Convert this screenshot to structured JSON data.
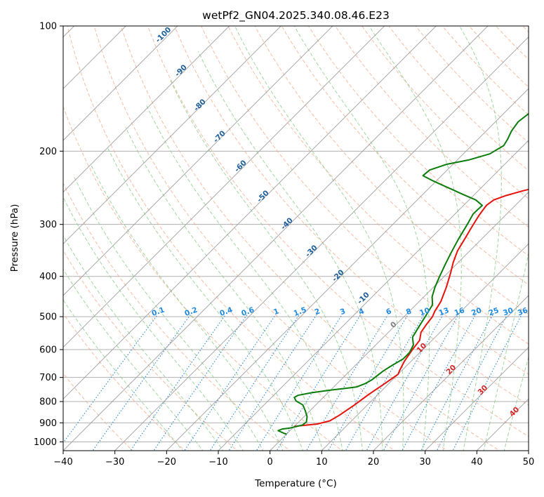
{
  "chart_data": {
    "type": "line",
    "title": "wetPf2_GN04.2025.340.08.46.E23",
    "xlabel": "Temperature (°C)",
    "ylabel": "Pressure (hPa)",
    "xlim": [
      -40,
      50
    ],
    "ylim": [
      1050,
      100
    ],
    "x_ticks": [
      -40,
      -30,
      -20,
      -10,
      0,
      10,
      20,
      30,
      40,
      50
    ],
    "x_tick_labels": [
      "−40",
      "−30",
      "−20",
      "−10",
      "0",
      "10",
      "20",
      "30",
      "40",
      "50"
    ],
    "y_ticks": [
      1000,
      900,
      800,
      700,
      600,
      500,
      400,
      300,
      200,
      100
    ],
    "y_tick_labels": [
      "1000",
      "900",
      "800",
      "700",
      "600",
      "500",
      "400",
      "300",
      "200",
      "100"
    ],
    "grid": true,
    "skew_deg": 45,
    "colors": {
      "temperature": "#e8120c",
      "dewpoint": "#0a7d0a",
      "isotherm": "#9a9a9a",
      "dry_adiabat": "#f4a583",
      "moist_adiabat": "#8fcf8f",
      "mixing_ratio": "#2a8ad8",
      "label_dry": "#1f5f9a",
      "label_moist": "#d62728",
      "label_mixing": "#1f8ae0",
      "label_zero": "#7f7f7f"
    },
    "series": [
      {
        "name": "Temperature",
        "color": "#e8120c",
        "points": [
          [
            0.0,
            918
          ],
          [
            4,
            906
          ],
          [
            5.8,
            890
          ],
          [
            6.6,
            862
          ],
          [
            7.5,
            815
          ],
          [
            8.2,
            770
          ],
          [
            9.2,
            725
          ],
          [
            10.0,
            688
          ],
          [
            9.6,
            675
          ],
          [
            8.7,
            640
          ],
          [
            8.0,
            600
          ],
          [
            7.6,
            570
          ],
          [
            6.3,
            545
          ],
          [
            5.8,
            520
          ],
          [
            5.5,
            500
          ],
          [
            4.9,
            485
          ],
          [
            4.2,
            460
          ],
          [
            2.5,
            425
          ],
          [
            0.6,
            393
          ],
          [
            -1.0,
            370
          ],
          [
            -2.4,
            347
          ],
          [
            -3.3,
            325
          ],
          [
            -4.2,
            305
          ],
          [
            -5.1,
            285
          ],
          [
            -5.6,
            270
          ],
          [
            -5.2,
            262
          ],
          [
            -3.8,
            256
          ],
          [
            -1.3,
            249
          ],
          [
            1.3,
            243
          ],
          [
            3.5,
            236
          ],
          [
            5.3,
            229
          ],
          [
            6.5,
            221
          ],
          [
            7.8,
            211
          ],
          [
            9.1,
            203
          ],
          [
            10.5,
            196
          ],
          [
            12.5,
            187
          ],
          [
            14.7,
            178
          ],
          [
            16.2,
            170
          ],
          [
            17.5,
            162
          ],
          [
            19.0,
            156
          ],
          [
            21.0,
            147
          ],
          [
            23.6,
            139
          ],
          [
            26.0,
            131
          ],
          [
            28.5,
            123
          ],
          [
            30.3,
            116
          ],
          [
            31.5,
            108
          ],
          [
            32.5,
            104
          ],
          [
            34.0,
            100
          ]
        ]
      },
      {
        "name": "Dewpoint",
        "color": "#0a7d0a",
        "points": [
          [
            0.0,
            958
          ],
          [
            -0.5,
            955
          ],
          [
            -2.3,
            940
          ],
          [
            -1.8,
            931
          ],
          [
            -0.5,
            926
          ],
          [
            1.3,
            911
          ],
          [
            1.5,
            896
          ],
          [
            0.6,
            870
          ],
          [
            -1.0,
            840
          ],
          [
            -2.5,
            815
          ],
          [
            -4.6,
            797
          ],
          [
            -5.6,
            782
          ],
          [
            -5.3,
            773
          ],
          [
            -3.2,
            762
          ],
          [
            -0.4,
            752
          ],
          [
            2.0,
            745
          ],
          [
            4.4,
            738
          ],
          [
            5.4,
            725
          ],
          [
            6.0,
            710
          ],
          [
            6.2,
            695
          ],
          [
            6.5,
            675
          ],
          [
            7.1,
            655
          ],
          [
            8.0,
            632
          ],
          [
            8.0,
            610
          ],
          [
            7.3,
            585
          ],
          [
            5.6,
            560
          ],
          [
            4.6,
            520
          ],
          [
            4.1,
            500
          ],
          [
            3.2,
            468
          ],
          [
            1.6,
            448
          ],
          [
            0.3,
            425
          ],
          [
            -0.9,
            400
          ],
          [
            -2.1,
            375
          ],
          [
            -3.3,
            350
          ],
          [
            -4.5,
            325
          ],
          [
            -5.6,
            300
          ],
          [
            -6.5,
            283
          ],
          [
            -6.4,
            270
          ],
          [
            -8.7,
            262
          ],
          [
            -12.3,
            254
          ],
          [
            -15.4,
            247
          ],
          [
            -18.2,
            241
          ],
          [
            -21.0,
            235
          ],
          [
            -23.6,
            229
          ],
          [
            -23.4,
            222
          ],
          [
            -21.2,
            215
          ],
          [
            -17.8,
            210
          ],
          [
            -14.9,
            203
          ],
          [
            -13.8,
            194
          ],
          [
            -14.3,
            187
          ],
          [
            -15.1,
            179
          ],
          [
            -15.6,
            170
          ],
          [
            -15.0,
            160
          ],
          [
            -14.4,
            150
          ],
          [
            -14.0,
            143
          ],
          [
            -13.5,
            136
          ],
          [
            -11.8,
            128
          ],
          [
            -9.8,
            122
          ],
          [
            -8.3,
            116
          ],
          [
            -6.2,
            110
          ],
          [
            -4.3,
            105
          ],
          [
            -2.6,
            100
          ]
        ]
      }
    ],
    "dry_adiabat_labels": [
      "-100",
      "-90",
      "-80",
      "-70",
      "-60",
      "-50",
      "-40",
      "-30",
      "-20",
      "-10"
    ],
    "dry_adiabat_label_values": [
      -100,
      -90,
      -80,
      -70,
      -60,
      -50,
      -40,
      -30,
      -20,
      -10
    ],
    "moist_adiabat_labels": [
      "0",
      "10",
      "20",
      "30",
      "40"
    ],
    "moist_adiabat_label_values": [
      0,
      10,
      20,
      30,
      40
    ],
    "mixing_ratio_labels": [
      "0.1",
      "0.2",
      "0.4",
      "0.6",
      "1",
      "1.5",
      "2",
      "3",
      "4",
      "6",
      "8",
      "10",
      "13",
      "16",
      "20",
      "25",
      "30",
      "36"
    ],
    "mixing_ratio_values": [
      0.1,
      0.2,
      0.4,
      0.6,
      1,
      1.5,
      2,
      3,
      4,
      6,
      8,
      10,
      13,
      16,
      20,
      25,
      30,
      36
    ]
  }
}
